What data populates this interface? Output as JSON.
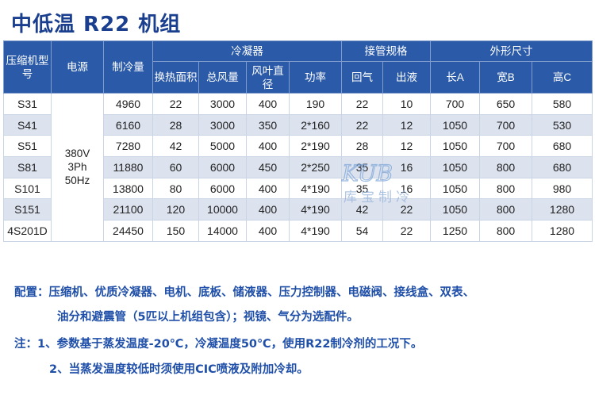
{
  "title": "中低温 R22 机组",
  "table": {
    "headers": {
      "model": "压缩机型号",
      "power": "电源",
      "capacity": "制冷量",
      "condenser": "冷凝器",
      "piping": "接管规格",
      "dimensions": "外形尺寸",
      "heat_area": "换热面积",
      "total_air": "总风量",
      "fan_dia": "风叶直径",
      "fan_power": "功率",
      "return": "回气",
      "outlet": "出液",
      "length": "长A",
      "width": "宽B",
      "height": "高C"
    },
    "power_supply": "380V\n3Ph\n50Hz",
    "rows": [
      {
        "model": "S31",
        "capacity": "4960",
        "area": "22",
        "air": "3000",
        "dia": "400",
        "fpower": "190",
        "ret": "22",
        "out": "10",
        "L": "700",
        "W": "650",
        "H": "580"
      },
      {
        "model": "S41",
        "capacity": "6160",
        "area": "28",
        "air": "3000",
        "dia": "350",
        "fpower": "2*160",
        "ret": "22",
        "out": "12",
        "L": "1050",
        "W": "700",
        "H": "530"
      },
      {
        "model": "S51",
        "capacity": "7280",
        "area": "42",
        "air": "5000",
        "dia": "400",
        "fpower": "2*190",
        "ret": "28",
        "out": "12",
        "L": "1050",
        "W": "700",
        "H": "680"
      },
      {
        "model": "S81",
        "capacity": "11880",
        "area": "60",
        "air": "6000",
        "dia": "450",
        "fpower": "2*250",
        "ret": "35",
        "out": "16",
        "L": "1050",
        "W": "800",
        "H": "680"
      },
      {
        "model": "S101",
        "capacity": "13800",
        "area": "80",
        "air": "6000",
        "dia": "400",
        "fpower": "4*190",
        "ret": "35",
        "out": "16",
        "L": "1050",
        "W": "800",
        "H": "980"
      },
      {
        "model": "S151",
        "capacity": "21100",
        "area": "120",
        "air": "10000",
        "dia": "400",
        "fpower": "4*190",
        "ret": "42",
        "out": "22",
        "L": "1050",
        "W": "800",
        "H": "1280"
      },
      {
        "model": "4S201D",
        "capacity": "24450",
        "area": "150",
        "air": "14000",
        "dia": "400",
        "fpower": "4*190",
        "ret": "54",
        "out": "22",
        "L": "1250",
        "W": "800",
        "H": "1280"
      }
    ]
  },
  "notes": {
    "config_line1": "配置：压缩机、优质冷凝器、电机、底板、储液器、压力控制器、电磁阀、接线盒、双表、",
    "config_line2": "油分和避震管（5匹以上机组包含）；视镜、气分为选配件。",
    "note_line1": "注：1、参数基于蒸发温度-20℃，冷凝温度50℃，使用R22制冷剂的工况下。",
    "note_line2": "2、当蒸发温度较低时须使用CIC喷液及附加冷却。"
  },
  "watermark": {
    "logo": "KUB",
    "text": "库宝制冷"
  },
  "colors": {
    "header_bg": "#2a5aa8",
    "title": "#1b3f8f",
    "notes": "#1f4fa8",
    "stripe": "#dce3ef"
  }
}
